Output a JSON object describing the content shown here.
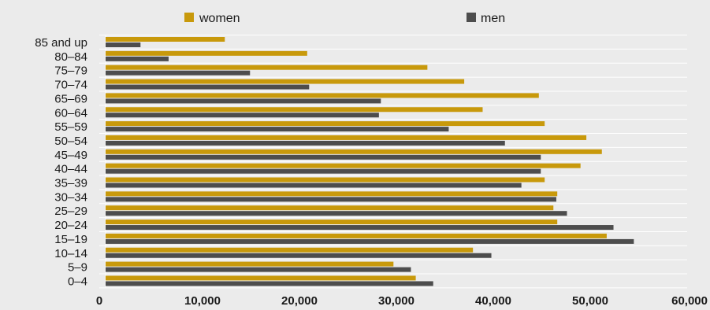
{
  "chart_data": {
    "type": "bar",
    "orientation": "horizontal",
    "categories": [
      "85 and up",
      "80–84",
      "75–79",
      "70–74",
      "65–69",
      "60–64",
      "55–59",
      "50–54",
      "45–49",
      "40–44",
      "35–39",
      "30–34",
      "25–29",
      "20–24",
      "15–19",
      "10–14",
      "5–9",
      "0–4"
    ],
    "series": [
      {
        "name": "women",
        "color": "#c8990b",
        "values": [
          12300,
          20800,
          33200,
          37000,
          44700,
          38900,
          45300,
          49600,
          51200,
          49000,
          45300,
          46600,
          46200,
          46600,
          51700,
          37900,
          29700,
          32000
        ]
      },
      {
        "name": "men",
        "color": "#4d4d4d",
        "values": [
          3600,
          6500,
          14900,
          21000,
          28400,
          28200,
          35400,
          41200,
          44900,
          44900,
          42900,
          46500,
          47600,
          52400,
          54500,
          39800,
          31500,
          33800
        ]
      }
    ],
    "xlim": [
      0,
      60000
    ],
    "xticks": [
      0,
      10000,
      20000,
      30000,
      40000,
      50000,
      60000
    ],
    "xtick_labels": [
      "0",
      "10,000",
      "20,000",
      "30,000",
      "40,000",
      "50,000",
      "60,000"
    ],
    "title": "",
    "xlabel": "",
    "ylabel": "",
    "grid": true,
    "legend_position": "top"
  }
}
